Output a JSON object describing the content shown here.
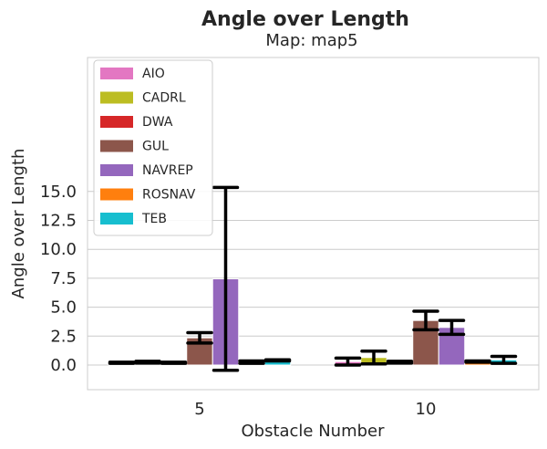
{
  "chart_data": {
    "type": "bar",
    "title": "Angle over Length",
    "subtitle": "Map: map5",
    "xlabel": "Obstacle Number",
    "ylabel": "Angle over Length",
    "categories": [
      "5",
      "10"
    ],
    "ylim": [
      -1.3,
      16.3
    ],
    "yticks": [
      0.0,
      2.5,
      5.0,
      7.5,
      10.0,
      12.5,
      15.0
    ],
    "ytick_labels": [
      "0.0",
      "2.5",
      "5.0",
      "7.5",
      "10.0",
      "12.5",
      "15.0"
    ],
    "grid": true,
    "legend_position": "top-left",
    "series": [
      {
        "name": "AIO",
        "color": "#e377c2",
        "values": [
          0.2,
          0.3
        ],
        "errors": [
          0.05,
          0.3
        ]
      },
      {
        "name": "CADRL",
        "color": "#bcbd22",
        "values": [
          0.25,
          0.65
        ],
        "errors": [
          0.08,
          0.55
        ]
      },
      {
        "name": "DWA",
        "color": "#d62728",
        "values": [
          0.2,
          0.25
        ],
        "errors": [
          0.05,
          0.08
        ]
      },
      {
        "name": "GUL",
        "color": "#8c564b",
        "values": [
          2.35,
          3.85
        ],
        "errors": [
          0.45,
          0.8
        ]
      },
      {
        "name": "NAVREP",
        "color": "#9467bd",
        "values": [
          7.45,
          3.25
        ],
        "errors": [
          7.9,
          0.6
        ]
      },
      {
        "name": "ROSNAV",
        "color": "#ff7f0e",
        "values": [
          0.25,
          0.3
        ],
        "errors": [
          0.1,
          0.05
        ]
      },
      {
        "name": "TEB",
        "color": "#17becf",
        "values": [
          0.4,
          0.45
        ],
        "errors": [
          0.05,
          0.3
        ]
      }
    ]
  }
}
